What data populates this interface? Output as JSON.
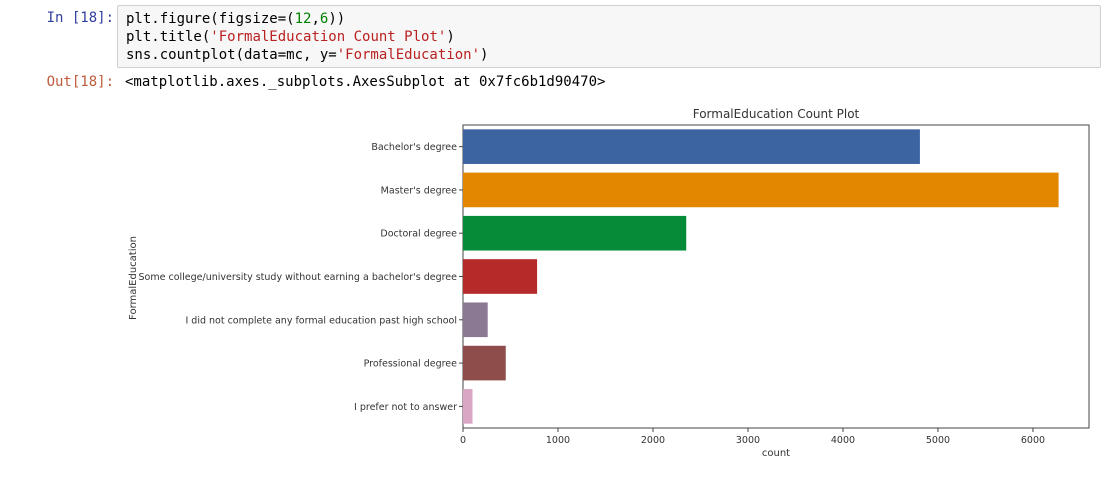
{
  "input_cell": {
    "prompt": "In [18]:",
    "code": [
      [
        {
          "t": "plt.figure(figsize=(",
          "c": ""
        },
        {
          "t": "12",
          "c": "num"
        },
        {
          "t": ",",
          "c": ""
        },
        {
          "t": "6",
          "c": "num"
        },
        {
          "t": "))",
          "c": ""
        }
      ],
      [
        {
          "t": "plt.title(",
          "c": ""
        },
        {
          "t": "'FormalEducation Count Plot'",
          "c": "str"
        },
        {
          "t": ")",
          "c": ""
        }
      ],
      [
        {
          "t": "sns.countplot(data=mc, y=",
          "c": ""
        },
        {
          "t": "'FormalEducation'",
          "c": "str"
        },
        {
          "t": ")",
          "c": ""
        }
      ]
    ]
  },
  "output_cell": {
    "prompt": "Out[18]:",
    "text": "<matplotlib.axes._subplots.AxesSubplot at 0x7fc6b1d90470>"
  },
  "chart_data": {
    "type": "bar",
    "orientation": "horizontal",
    "title": "FormalEducation Count Plot",
    "xlabel": "count",
    "ylabel": "FormalEducation",
    "categories": [
      "Bachelor's degree",
      "Master's degree",
      "Doctoral degree",
      "Some college/university study without earning a bachelor's degree",
      "I did not complete any formal education past high school",
      "Professional degree",
      "I prefer not to answer"
    ],
    "values": [
      4810,
      6270,
      2350,
      780,
      260,
      450,
      100
    ],
    "colors": [
      "#3c64a0",
      "#e38600",
      "#068c39",
      "#b72a2a",
      "#8b7893",
      "#8e4d4a",
      "#d9a6c4"
    ],
    "xticks": [
      0,
      1000,
      2000,
      3000,
      4000,
      5000,
      6000
    ],
    "xlim": [
      0,
      6590
    ],
    "grid": false
  }
}
